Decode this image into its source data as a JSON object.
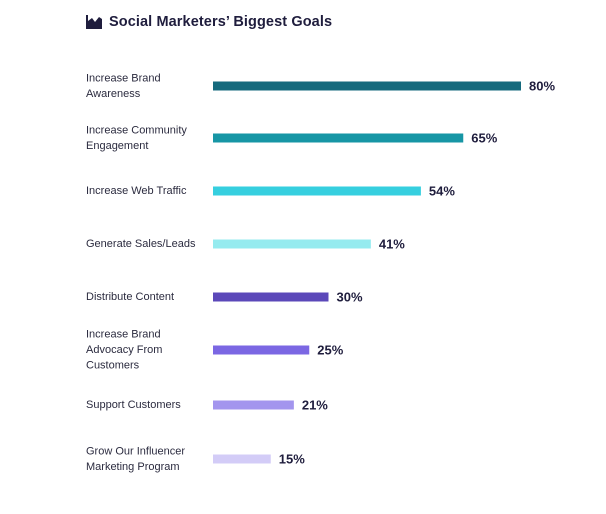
{
  "chart_data": {
    "type": "bar",
    "orientation": "horizontal",
    "title": "Social Marketers’ Biggest Goals",
    "title_icon": "bar-chart-icon",
    "categories": [
      [
        "Increase Brand",
        "Awareness"
      ],
      [
        "Increase Community",
        "Engagement"
      ],
      [
        "Increase Web Traffic"
      ],
      [
        "Generate Sales/Leads"
      ],
      [
        "Distribute Content"
      ],
      [
        "Increase Brand",
        "Advocacy From",
        "Customers"
      ],
      [
        "Support Customers"
      ],
      [
        "Grow Our Influencer",
        "Marketing Program"
      ]
    ],
    "values": [
      80,
      65,
      54,
      41,
      30,
      25,
      21,
      15
    ],
    "value_labels": [
      "80%",
      "65%",
      "54%",
      "41%",
      "30%",
      "25%",
      "21%",
      "15%"
    ],
    "colors": [
      "#156a7d",
      "#1796a5",
      "#36cfdf",
      "#95ebef",
      "#5b48b9",
      "#7b67e3",
      "#a395ee",
      "#d3ccf7"
    ],
    "value_unit": "%",
    "xlim": [
      0,
      80
    ],
    "grid": false,
    "legend": "none",
    "title_color": "#1f1d3d"
  }
}
